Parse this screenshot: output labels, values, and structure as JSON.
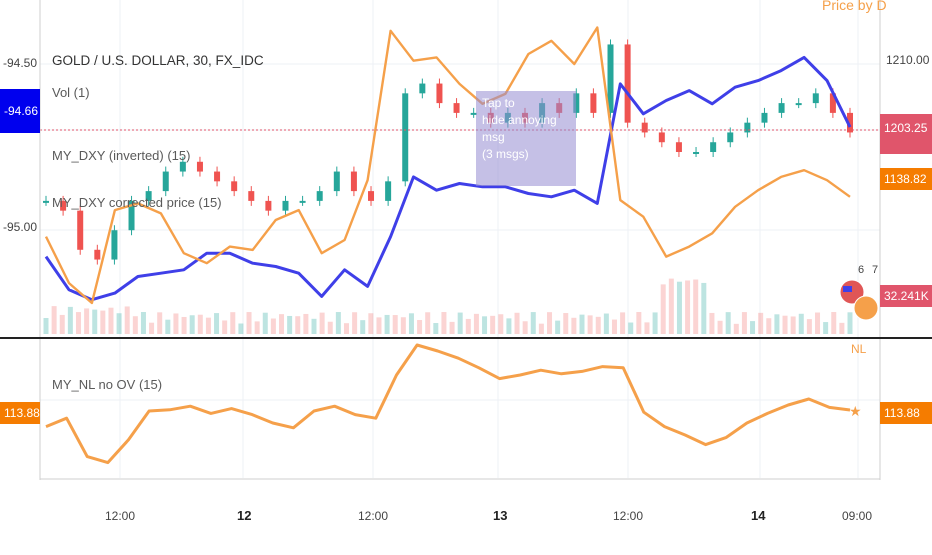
{
  "chart_title": "GOLD / U.S. DOLLAR, 30, FX_IDC",
  "indicators": {
    "vol": "Vol (1)",
    "dxy_inverted": "MY_DXY (inverted) (15)",
    "dxy_corrected": "MY_DXY corrected price (15)",
    "nl": "MY_NL no OV (15)",
    "price_by": "Price by D",
    "nl_tag": "NL"
  },
  "overlay_msg": {
    "line1": "Tap to",
    "line2": "hide annoying msg",
    "line3": "(3 msgs)"
  },
  "left_axis": {
    "ticks": [
      "-94.50",
      "-95.00"
    ],
    "current": "-94.66",
    "current_color": "#0000ee",
    "lower_current": "113.88",
    "lower_color": "#f57c00"
  },
  "right_axis": {
    "tick": "1210.00",
    "price_tag": "1203.25",
    "price_tag_color": "#e0556b",
    "orange_tag": "1138.82",
    "orange_color": "#f57c00",
    "vol_tag": "32.241K",
    "vol_color": "#e0556b",
    "lower_tag": "113.88",
    "badge_6": "6",
    "badge_7": "7"
  },
  "time_axis": [
    "12:00",
    "12",
    "12:00",
    "13",
    "12:00",
    "14",
    "09:00"
  ],
  "colors": {
    "gold_up": "#26a69a",
    "gold_down": "#ef5350",
    "dxy": "#3f3fe8",
    "dxy_corrected": "#f5a04a",
    "nl": "#f5a04a",
    "hline": "#e0556b"
  },
  "chart_data": [
    {
      "type": "line",
      "title": "GOLD / U.S. DOLLAR, 30, FX_IDC",
      "x_ticks": [
        "12:00",
        "12",
        "12:00",
        "13",
        "12:00",
        "14",
        "09:00"
      ],
      "right_ylim": [
        1185,
        1218
      ],
      "left_ylim": [
        -95.25,
        -94.38
      ],
      "series": [
        {
          "name": "GOLD / U.S. DOLLAR",
          "axis": "right",
          "values": [
            1196,
            1195,
            1191,
            1190,
            1193,
            1196,
            1197,
            1199,
            1200,
            1199,
            1198,
            1197,
            1196,
            1195,
            1196,
            1196,
            1197,
            1199,
            1197,
            1196,
            1198,
            1207,
            1208,
            1206,
            1205,
            1205,
            1204,
            1205,
            1204,
            1206,
            1205,
            1207,
            1205,
            1212,
            1204,
            1203,
            1202,
            1201,
            1201,
            1202,
            1203,
            1204,
            1205,
            1206,
            1206,
            1207,
            1205,
            1203
          ]
        },
        {
          "name": "MY_DXY (inverted)",
          "axis": "left",
          "values": [
            -95.08,
            -95.18,
            -95.21,
            -95.19,
            -95.14,
            -95.13,
            -95.12,
            -95.07,
            -95.07,
            -95.1,
            -95.11,
            -95.13,
            -95.2,
            -95.12,
            -95.17,
            -95.02,
            -94.84,
            -94.88,
            -94.86,
            -94.87,
            -94.87,
            -94.89,
            -94.9,
            -94.88,
            -94.92,
            -94.56,
            -94.65,
            -94.61,
            -94.58,
            -94.62,
            -94.57,
            -94.55,
            -94.52,
            -94.48,
            -94.55,
            -94.69
          ]
        },
        {
          "name": "MY_DXY corrected price",
          "axis": "left",
          "values": [
            -95.02,
            -95.16,
            -95.22,
            -94.94,
            -94.92,
            -94.95,
            -95.07,
            -95.1,
            -95.05,
            -95.06,
            -94.97,
            -94.94,
            -95.07,
            -95.03,
            -94.85,
            -94.4,
            -94.49,
            -94.48,
            -94.56,
            -94.62,
            -94.59,
            -94.47,
            -94.43,
            -94.5,
            -94.39,
            -94.91,
            -94.96,
            -95.08,
            -95.05,
            -95.01,
            -94.93,
            -94.88,
            -94.84,
            -94.82,
            -94.85,
            -94.9
          ]
        }
      ]
    },
    {
      "type": "line",
      "title": "MY_NL no OV (15)",
      "ylim": [
        108,
        120
      ],
      "series": [
        {
          "name": "MY_NL no OV",
          "values": [
            112.5,
            113.2,
            110.0,
            109.5,
            111.4,
            113.8,
            113.9,
            114.2,
            113.6,
            114.0,
            113.5,
            112.8,
            112.4,
            113.8,
            114.2,
            113.5,
            113.2,
            116.8,
            119.3,
            118.8,
            118.2,
            117.4,
            116.5,
            116.8,
            117.2,
            116.9,
            117.1,
            117.5,
            117.4,
            113.7,
            112.5,
            111.8,
            111.0,
            111.6,
            112.8,
            113.6,
            114.3,
            114.8,
            114.1,
            113.88
          ]
        }
      ]
    }
  ]
}
